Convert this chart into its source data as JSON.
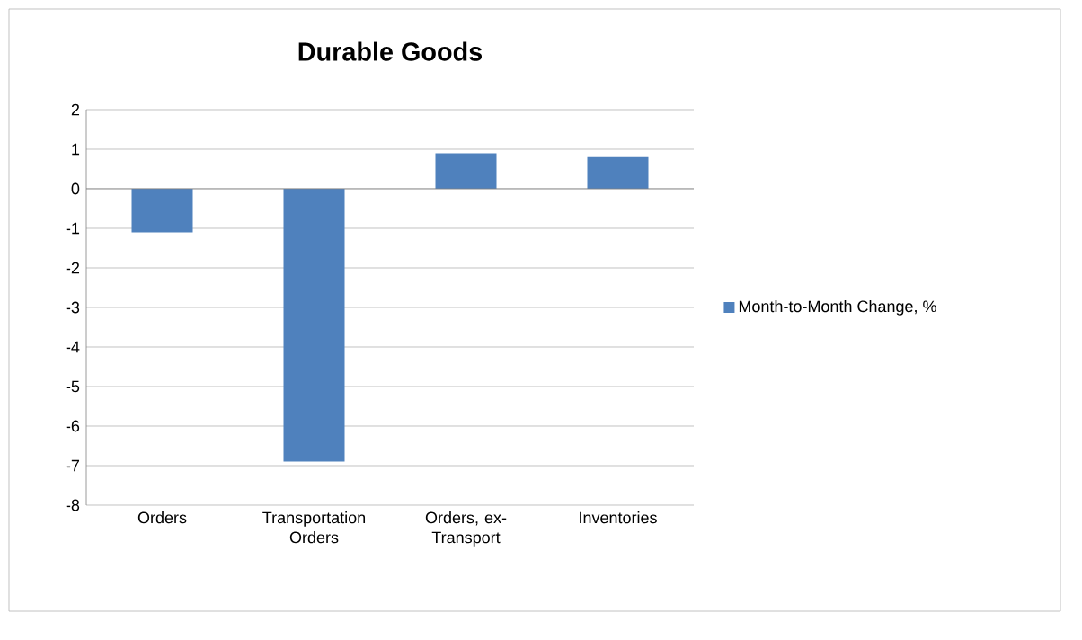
{
  "chart_data": {
    "type": "bar",
    "title": "Durable Goods",
    "categories": [
      "Orders",
      "Transportation Orders",
      "Orders, ex-Transport",
      "Inventories"
    ],
    "series": [
      {
        "name": "Month-to-Month Change, %",
        "color": "#4f81bd",
        "values": [
          -1.1,
          -6.9,
          0.9,
          0.8
        ]
      }
    ],
    "ylim": [
      -8,
      2
    ],
    "yticks": [
      -8,
      -7,
      -6,
      -5,
      -4,
      -3,
      -2,
      -1,
      0,
      1,
      2
    ],
    "grid": "y",
    "legend": "right"
  }
}
